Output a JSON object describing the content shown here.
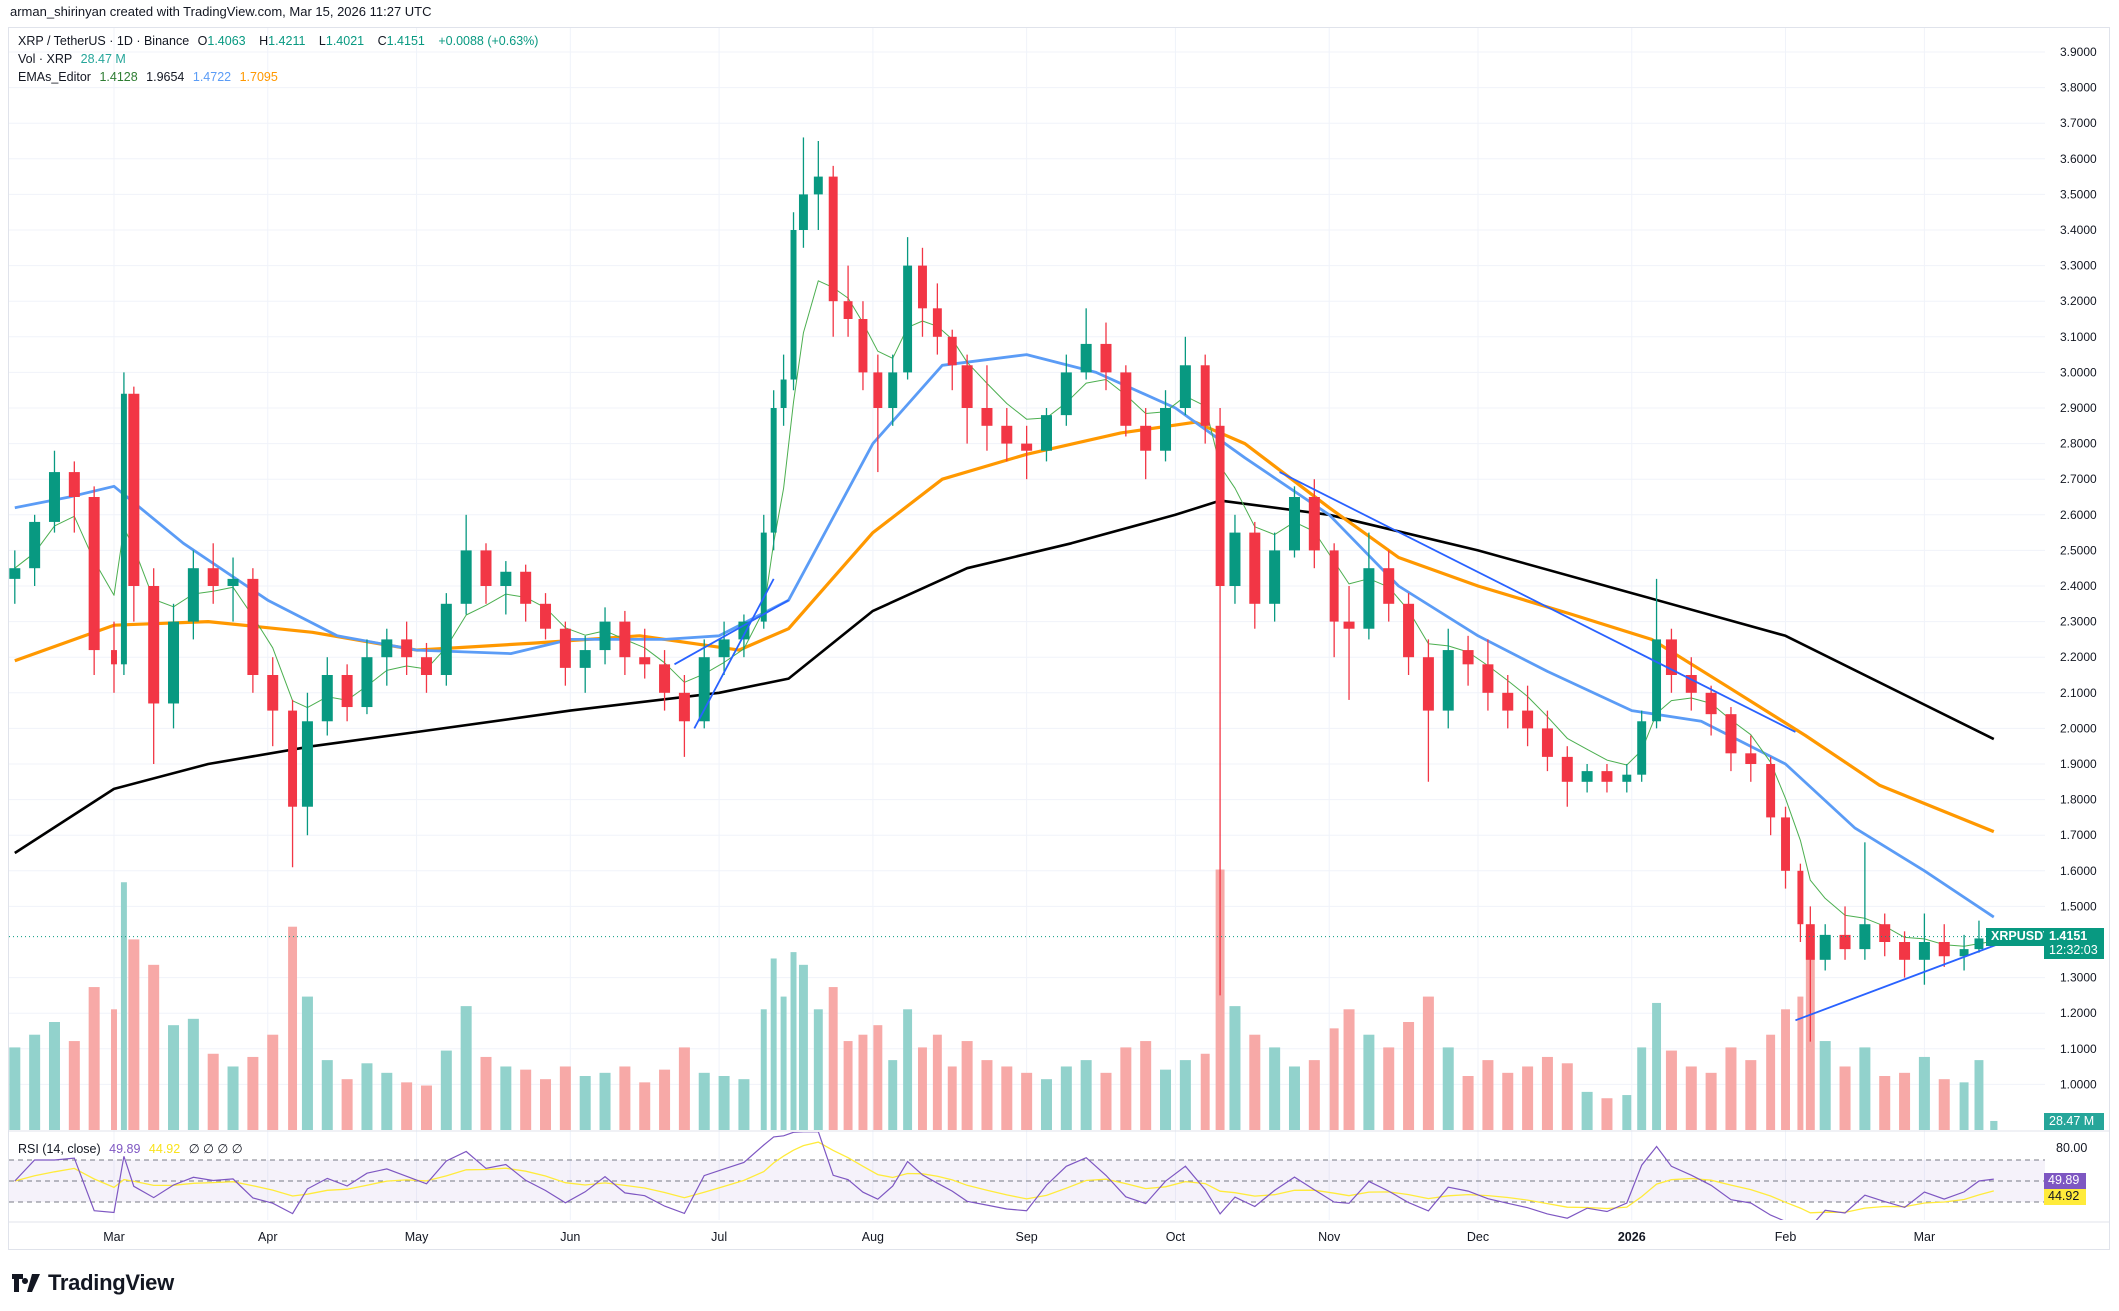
{
  "credit": "arman_shirinyan created with TradingView.com, Mar 15, 2026 11:27 UTC",
  "legend": {
    "symbol": "XRP / TetherUS · 1D · Binance",
    "o_label": "O",
    "o": "1.4063",
    "h_label": "H",
    "h": "1.4211",
    "l_label": "L",
    "l": "1.4021",
    "c_label": "C",
    "c": "1.4151",
    "change": "+0.0088 (+0.63%)",
    "vol_label": "Vol · XRP",
    "vol": "28.47 M",
    "ema_label": "EMAs_Editor",
    "ema20": "1.4128",
    "ema200": "1.9654",
    "ema50": "1.4722",
    "ema100": "1.7095",
    "rsi_label": "RSI (14, close)",
    "rsi": "49.89",
    "rsi_ma": "44.92",
    "rsi_extra": "∅ ∅ ∅ ∅"
  },
  "tags": {
    "symbol": "XRPUSDT",
    "price": "1.4151",
    "countdown": "12:32:03",
    "volume": "28.47 M",
    "rsi": "49.89",
    "rsi_ma": "44.92",
    "rsi_level": "80.00"
  },
  "logo": "TradingView",
  "colors": {
    "up": "#089981",
    "down": "#f23645",
    "vol_up": "#92d2cc",
    "vol_down": "#f7a9a7",
    "ema20": "#4caf50",
    "ema50": "#5b9cf6",
    "ema100": "#ff9800",
    "ema200": "#000000",
    "trendline": "#2962ff",
    "rsi": "#7e57c2",
    "rsi_ma": "#ffeb3b"
  },
  "chart_data": {
    "type": "candlestick",
    "title": "XRP / TetherUS · 1D · Binance",
    "ylim": [
      0.9,
      3.95
    ],
    "price_ticks": [
      "3.9000",
      "3.8000",
      "3.7000",
      "3.6000",
      "3.5000",
      "3.4000",
      "3.3000",
      "3.2000",
      "3.1000",
      "3.0000",
      "2.9000",
      "2.8000",
      "2.7000",
      "2.6000",
      "2.5000",
      "2.4000",
      "2.3000",
      "2.2000",
      "2.1000",
      "2.0000",
      "1.9000",
      "1.8000",
      "1.7000",
      "1.6000",
      "1.5000",
      "1.3000",
      "1.2000",
      "1.1000",
      "1.0000"
    ],
    "time_ticks": [
      {
        "label": "Mar",
        "date": "2025-03-01"
      },
      {
        "label": "Apr",
        "date": "2025-04-01"
      },
      {
        "label": "May",
        "date": "2025-05-01"
      },
      {
        "label": "Jun",
        "date": "2025-06-01"
      },
      {
        "label": "Jul",
        "date": "2025-07-01"
      },
      {
        "label": "Aug",
        "date": "2025-08-01"
      },
      {
        "label": "Sep",
        "date": "2025-09-01"
      },
      {
        "label": "Oct",
        "date": "2025-10-01"
      },
      {
        "label": "Nov",
        "date": "2025-11-01"
      },
      {
        "label": "Dec",
        "date": "2025-12-01"
      },
      {
        "label": "2026",
        "date": "2026-01-01"
      },
      {
        "label": "Feb",
        "date": "2026-02-01"
      },
      {
        "label": "Mar",
        "date": "2026-03-01"
      }
    ],
    "ohlcv": [
      [
        "2025-02-09",
        2.42,
        2.5,
        2.35,
        2.45,
        260
      ],
      [
        "2025-02-13",
        2.45,
        2.6,
        2.4,
        2.58,
        300
      ],
      [
        "2025-02-17",
        2.58,
        2.78,
        2.55,
        2.72,
        340
      ],
      [
        "2025-02-21",
        2.72,
        2.75,
        2.55,
        2.65,
        280
      ],
      [
        "2025-02-25",
        2.65,
        2.68,
        2.15,
        2.22,
        450
      ],
      [
        "2025-03-01",
        2.22,
        2.3,
        2.1,
        2.18,
        380
      ],
      [
        "2025-03-03",
        2.18,
        3.0,
        2.15,
        2.94,
        780
      ],
      [
        "2025-03-05",
        2.94,
        2.96,
        2.3,
        2.4,
        600
      ],
      [
        "2025-03-09",
        2.4,
        2.45,
        1.9,
        2.07,
        520
      ],
      [
        "2025-03-13",
        2.07,
        2.35,
        2.0,
        2.3,
        330
      ],
      [
        "2025-03-17",
        2.3,
        2.5,
        2.25,
        2.45,
        350
      ],
      [
        "2025-03-21",
        2.45,
        2.52,
        2.35,
        2.4,
        240
      ],
      [
        "2025-03-25",
        2.4,
        2.48,
        2.3,
        2.42,
        200
      ],
      [
        "2025-03-29",
        2.42,
        2.45,
        2.1,
        2.15,
        230
      ],
      [
        "2025-04-02",
        2.15,
        2.2,
        1.95,
        2.05,
        300
      ],
      [
        "2025-04-06",
        2.05,
        2.08,
        1.61,
        1.78,
        640
      ],
      [
        "2025-04-09",
        1.78,
        2.1,
        1.7,
        2.02,
        420
      ],
      [
        "2025-04-13",
        2.02,
        2.2,
        1.98,
        2.15,
        220
      ],
      [
        "2025-04-17",
        2.15,
        2.18,
        2.02,
        2.06,
        160
      ],
      [
        "2025-04-21",
        2.06,
        2.25,
        2.04,
        2.2,
        210
      ],
      [
        "2025-04-25",
        2.2,
        2.28,
        2.12,
        2.25,
        180
      ],
      [
        "2025-04-29",
        2.25,
        2.3,
        2.15,
        2.2,
        150
      ],
      [
        "2025-05-03",
        2.2,
        2.24,
        2.1,
        2.15,
        140
      ],
      [
        "2025-05-07",
        2.15,
        2.38,
        2.12,
        2.35,
        250
      ],
      [
        "2025-05-11",
        2.35,
        2.6,
        2.32,
        2.5,
        390
      ],
      [
        "2025-05-15",
        2.5,
        2.52,
        2.35,
        2.4,
        230
      ],
      [
        "2025-05-19",
        2.4,
        2.47,
        2.32,
        2.44,
        200
      ],
      [
        "2025-05-23",
        2.44,
        2.46,
        2.3,
        2.35,
        190
      ],
      [
        "2025-05-27",
        2.35,
        2.38,
        2.25,
        2.28,
        160
      ],
      [
        "2025-05-31",
        2.28,
        2.3,
        2.12,
        2.17,
        200
      ],
      [
        "2025-06-04",
        2.17,
        2.26,
        2.1,
        2.22,
        170
      ],
      [
        "2025-06-08",
        2.22,
        2.34,
        2.18,
        2.3,
        180
      ],
      [
        "2025-06-12",
        2.3,
        2.33,
        2.15,
        2.2,
        200
      ],
      [
        "2025-06-16",
        2.2,
        2.28,
        2.14,
        2.18,
        150
      ],
      [
        "2025-06-20",
        2.18,
        2.22,
        2.05,
        2.1,
        190
      ],
      [
        "2025-06-24",
        2.1,
        2.15,
        1.92,
        2.02,
        260
      ],
      [
        "2025-06-28",
        2.02,
        2.25,
        2.0,
        2.2,
        180
      ],
      [
        "2025-07-02",
        2.2,
        2.3,
        2.15,
        2.25,
        170
      ],
      [
        "2025-07-06",
        2.25,
        2.32,
        2.2,
        2.3,
        160
      ],
      [
        "2025-07-10",
        2.3,
        2.6,
        2.28,
        2.55,
        380
      ],
      [
        "2025-07-12",
        2.55,
        2.95,
        2.5,
        2.9,
        540
      ],
      [
        "2025-07-14",
        2.9,
        3.05,
        2.85,
        2.98,
        420
      ],
      [
        "2025-07-16",
        2.98,
        3.45,
        2.95,
        3.4,
        560
      ],
      [
        "2025-07-18",
        3.4,
        3.66,
        3.35,
        3.5,
        520
      ],
      [
        "2025-07-21",
        3.5,
        3.65,
        3.4,
        3.55,
        380
      ],
      [
        "2025-07-24",
        3.55,
        3.58,
        3.1,
        3.2,
        450
      ],
      [
        "2025-07-27",
        3.2,
        3.3,
        3.1,
        3.15,
        280
      ],
      [
        "2025-07-30",
        3.15,
        3.2,
        2.95,
        3.0,
        300
      ],
      [
        "2025-08-02",
        3.0,
        3.05,
        2.72,
        2.9,
        330
      ],
      [
        "2025-08-05",
        2.9,
        3.05,
        2.85,
        3.0,
        220
      ],
      [
        "2025-08-08",
        3.0,
        3.38,
        2.98,
        3.3,
        380
      ],
      [
        "2025-08-11",
        3.3,
        3.35,
        3.1,
        3.18,
        260
      ],
      [
        "2025-08-14",
        3.18,
        3.25,
        3.05,
        3.1,
        300
      ],
      [
        "2025-08-17",
        3.1,
        3.12,
        2.95,
        3.02,
        200
      ],
      [
        "2025-08-20",
        3.02,
        3.05,
        2.8,
        2.9,
        280
      ],
      [
        "2025-08-24",
        2.9,
        3.02,
        2.78,
        2.85,
        220
      ],
      [
        "2025-08-28",
        2.85,
        2.9,
        2.75,
        2.8,
        200
      ],
      [
        "2025-09-01",
        2.8,
        2.85,
        2.7,
        2.78,
        180
      ],
      [
        "2025-09-05",
        2.78,
        2.9,
        2.75,
        2.88,
        160
      ],
      [
        "2025-09-09",
        2.88,
        3.05,
        2.85,
        3.0,
        200
      ],
      [
        "2025-09-13",
        3.0,
        3.18,
        2.98,
        3.08,
        220
      ],
      [
        "2025-09-17",
        3.08,
        3.14,
        2.95,
        3.0,
        180
      ],
      [
        "2025-09-21",
        3.0,
        3.02,
        2.82,
        2.85,
        260
      ],
      [
        "2025-09-25",
        2.85,
        2.9,
        2.7,
        2.78,
        280
      ],
      [
        "2025-09-29",
        2.78,
        2.95,
        2.75,
        2.9,
        190
      ],
      [
        "2025-10-03",
        2.9,
        3.1,
        2.88,
        3.02,
        220
      ],
      [
        "2025-10-07",
        3.02,
        3.05,
        2.8,
        2.85,
        240
      ],
      [
        "2025-10-10",
        2.85,
        2.9,
        1.25,
        2.4,
        820
      ],
      [
        "2025-10-13",
        2.4,
        2.6,
        2.35,
        2.55,
        390
      ],
      [
        "2025-10-17",
        2.55,
        2.58,
        2.28,
        2.35,
        300
      ],
      [
        "2025-10-21",
        2.35,
        2.55,
        2.3,
        2.5,
        260
      ],
      [
        "2025-10-25",
        2.5,
        2.68,
        2.48,
        2.65,
        200
      ],
      [
        "2025-10-29",
        2.65,
        2.7,
        2.45,
        2.5,
        220
      ],
      [
        "2025-11-02",
        2.5,
        2.52,
        2.2,
        2.3,
        320
      ],
      [
        "2025-11-05",
        2.3,
        2.4,
        2.08,
        2.28,
        380
      ],
      [
        "2025-11-09",
        2.28,
        2.55,
        2.25,
        2.45,
        300
      ],
      [
        "2025-11-13",
        2.45,
        2.5,
        2.3,
        2.35,
        260
      ],
      [
        "2025-11-17",
        2.35,
        2.38,
        2.15,
        2.2,
        340
      ],
      [
        "2025-11-21",
        2.2,
        2.25,
        1.85,
        2.05,
        420
      ],
      [
        "2025-11-25",
        2.05,
        2.28,
        2.0,
        2.22,
        260
      ],
      [
        "2025-11-29",
        2.22,
        2.26,
        2.12,
        2.18,
        170
      ],
      [
        "2025-12-03",
        2.18,
        2.25,
        2.05,
        2.1,
        220
      ],
      [
        "2025-12-07",
        2.1,
        2.15,
        2.0,
        2.05,
        180
      ],
      [
        "2025-12-11",
        2.05,
        2.12,
        1.95,
        2.0,
        200
      ],
      [
        "2025-12-15",
        2.0,
        2.05,
        1.88,
        1.92,
        230
      ],
      [
        "2025-12-19",
        1.92,
        1.95,
        1.78,
        1.85,
        210
      ],
      [
        "2025-12-23",
        1.85,
        1.9,
        1.82,
        1.88,
        120
      ],
      [
        "2025-12-27",
        1.88,
        1.9,
        1.82,
        1.85,
        100
      ],
      [
        "2025-12-31",
        1.85,
        1.9,
        1.82,
        1.87,
        110
      ],
      [
        "2026-01-03",
        1.87,
        2.05,
        1.85,
        2.02,
        260
      ],
      [
        "2026-01-06",
        2.02,
        2.42,
        2.0,
        2.25,
        400
      ],
      [
        "2026-01-09",
        2.25,
        2.28,
        2.1,
        2.15,
        250
      ],
      [
        "2026-01-13",
        2.15,
        2.2,
        2.05,
        2.1,
        200
      ],
      [
        "2026-01-17",
        2.1,
        2.12,
        1.98,
        2.04,
        180
      ],
      [
        "2026-01-21",
        2.04,
        2.06,
        1.88,
        1.93,
        260
      ],
      [
        "2026-01-25",
        1.93,
        1.98,
        1.85,
        1.9,
        220
      ],
      [
        "2026-01-29",
        1.9,
        1.92,
        1.7,
        1.75,
        300
      ],
      [
        "2026-02-01",
        1.75,
        1.78,
        1.55,
        1.6,
        380
      ],
      [
        "2026-02-04",
        1.6,
        1.62,
        1.4,
        1.45,
        420
      ],
      [
        "2026-02-06",
        1.45,
        1.5,
        1.12,
        1.35,
        620
      ],
      [
        "2026-02-09",
        1.35,
        1.45,
        1.32,
        1.42,
        280
      ],
      [
        "2026-02-13",
        1.42,
        1.5,
        1.35,
        1.38,
        200
      ],
      [
        "2026-02-17",
        1.38,
        1.68,
        1.35,
        1.45,
        260
      ],
      [
        "2026-02-21",
        1.45,
        1.48,
        1.36,
        1.4,
        170
      ],
      [
        "2026-02-25",
        1.4,
        1.43,
        1.3,
        1.35,
        180
      ],
      [
        "2026-03-01",
        1.35,
        1.48,
        1.28,
        1.4,
        230
      ],
      [
        "2026-03-05",
        1.4,
        1.45,
        1.33,
        1.36,
        160
      ],
      [
        "2026-03-09",
        1.36,
        1.42,
        1.32,
        1.38,
        150
      ],
      [
        "2026-03-12",
        1.38,
        1.46,
        1.37,
        1.41,
        220
      ],
      [
        "2026-03-15",
        1.4063,
        1.4211,
        1.4021,
        1.4151,
        28.47
      ]
    ],
    "ema50": [
      [
        "2025-02-09",
        2.62
      ],
      [
        "2025-02-20",
        2.65
      ],
      [
        "2025-03-01",
        2.68
      ],
      [
        "2025-03-15",
        2.52
      ],
      [
        "2025-04-01",
        2.36
      ],
      [
        "2025-04-15",
        2.26
      ],
      [
        "2025-05-01",
        2.22
      ],
      [
        "2025-05-20",
        2.21
      ],
      [
        "2025-06-01",
        2.25
      ],
      [
        "2025-06-20",
        2.25
      ],
      [
        "2025-07-01",
        2.26
      ],
      [
        "2025-07-15",
        2.36
      ],
      [
        "2025-08-01",
        2.8
      ],
      [
        "2025-08-15",
        3.02
      ],
      [
        "2025-09-01",
        3.05
      ],
      [
        "2025-09-15",
        3.0
      ],
      [
        "2025-10-01",
        2.9
      ],
      [
        "2025-10-15",
        2.76
      ],
      [
        "2025-11-01",
        2.6
      ],
      [
        "2025-11-15",
        2.4
      ],
      [
        "2025-12-01",
        2.26
      ],
      [
        "2025-12-15",
        2.16
      ],
      [
        "2026-01-01",
        2.05
      ],
      [
        "2026-01-15",
        2.02
      ],
      [
        "2026-02-01",
        1.9
      ],
      [
        "2026-02-15",
        1.72
      ],
      [
        "2026-03-01",
        1.6
      ],
      [
        "2026-03-15",
        1.47
      ]
    ],
    "ema100": [
      [
        "2025-02-09",
        2.19
      ],
      [
        "2025-03-01",
        2.29
      ],
      [
        "2025-03-20",
        2.3
      ],
      [
        "2025-04-10",
        2.27
      ],
      [
        "2025-05-01",
        2.22
      ],
      [
        "2025-05-25",
        2.24
      ],
      [
        "2025-06-15",
        2.26
      ],
      [
        "2025-07-05",
        2.22
      ],
      [
        "2025-07-15",
        2.28
      ],
      [
        "2025-08-01",
        2.55
      ],
      [
        "2025-08-15",
        2.7
      ],
      [
        "2025-09-01",
        2.77
      ],
      [
        "2025-09-20",
        2.83
      ],
      [
        "2025-10-05",
        2.86
      ],
      [
        "2025-10-15",
        2.8
      ],
      [
        "2025-11-01",
        2.62
      ],
      [
        "2025-11-15",
        2.48
      ],
      [
        "2025-12-01",
        2.4
      ],
      [
        "2025-12-20",
        2.32
      ],
      [
        "2026-01-05",
        2.25
      ],
      [
        "2026-01-20",
        2.12
      ],
      [
        "2026-02-05",
        1.98
      ],
      [
        "2026-02-20",
        1.84
      ],
      [
        "2026-03-15",
        1.71
      ]
    ],
    "ema200": [
      [
        "2025-02-09",
        1.65
      ],
      [
        "2025-03-01",
        1.83
      ],
      [
        "2025-03-20",
        1.9
      ],
      [
        "2025-04-10",
        1.95
      ],
      [
        "2025-05-01",
        1.99
      ],
      [
        "2025-06-01",
        2.05
      ],
      [
        "2025-07-01",
        2.1
      ],
      [
        "2025-07-15",
        2.14
      ],
      [
        "2025-08-01",
        2.33
      ],
      [
        "2025-08-20",
        2.45
      ],
      [
        "2025-09-10",
        2.52
      ],
      [
        "2025-10-01",
        2.6
      ],
      [
        "2025-10-10",
        2.64
      ],
      [
        "2025-11-01",
        2.6
      ],
      [
        "2025-12-01",
        2.5
      ],
      [
        "2026-01-01",
        2.38
      ],
      [
        "2026-02-01",
        2.26
      ],
      [
        "2026-03-15",
        1.97
      ]
    ],
    "trendlines": [
      [
        [
          "2025-06-26",
          2.0
        ],
        [
          "2025-07-12",
          2.42
        ]
      ],
      [
        [
          "2025-06-22",
          2.18
        ],
        [
          "2025-07-15",
          2.36
        ]
      ],
      [
        [
          "2025-10-22",
          2.72
        ],
        [
          "2026-02-03",
          1.99
        ]
      ],
      [
        [
          "2026-02-03",
          1.18
        ],
        [
          "2026-03-17",
          1.4
        ]
      ]
    ],
    "rsi_levels": [
      70,
      50,
      30
    ]
  }
}
